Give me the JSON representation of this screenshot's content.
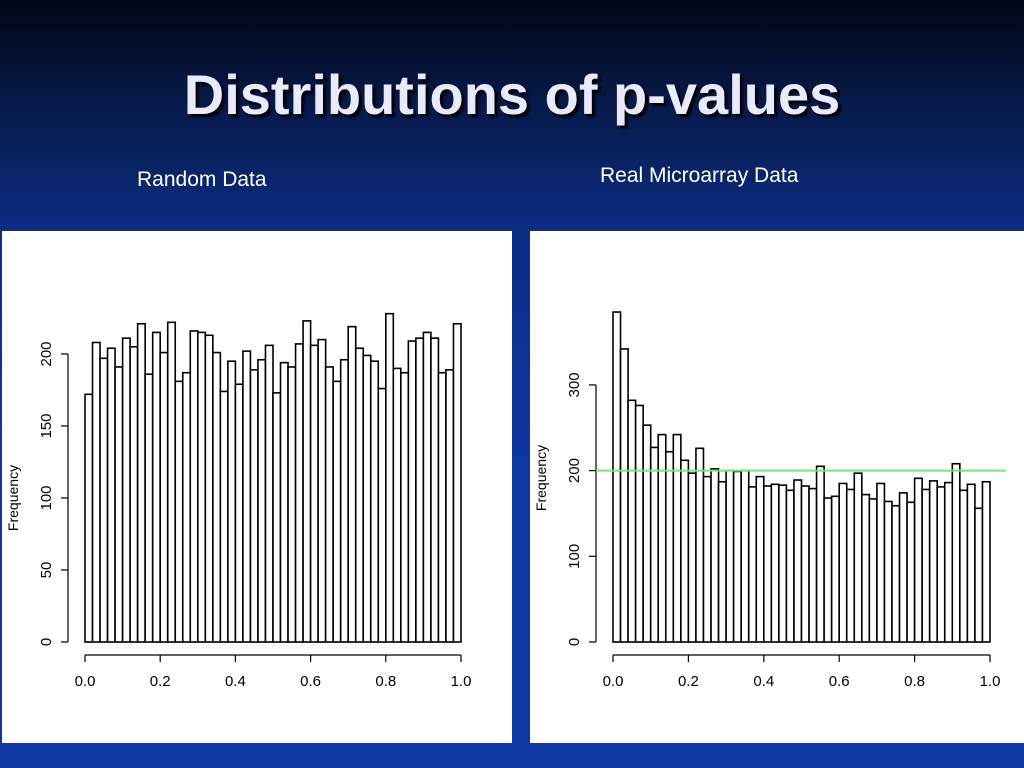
{
  "slide": {
    "title": "Distributions of p-values",
    "left_label": "Random Data",
    "right_label": "Real Microarray Data"
  },
  "colors": {
    "background_top": "#020617",
    "background_bottom": "#0c37a0",
    "title_text": "#eaeaff",
    "bars_stroke": "#000000",
    "reference_line": "#7be07b"
  },
  "chart_data": [
    {
      "type": "bar",
      "name": "random",
      "ylabel": "Frequency",
      "xlim": [
        0,
        1
      ],
      "ylim": [
        0,
        230
      ],
      "bin_width": 0.02,
      "bin_starts": [
        0.0,
        0.02,
        0.04,
        0.06,
        0.08,
        0.1,
        0.12,
        0.14,
        0.16,
        0.18,
        0.2,
        0.22,
        0.24,
        0.26,
        0.28,
        0.3,
        0.32,
        0.34,
        0.36,
        0.38,
        0.4,
        0.42,
        0.44,
        0.46,
        0.48,
        0.5,
        0.52,
        0.54,
        0.56,
        0.58,
        0.6,
        0.62,
        0.64,
        0.66,
        0.68,
        0.7,
        0.72,
        0.74,
        0.76,
        0.78,
        0.8,
        0.82,
        0.84,
        0.86,
        0.88,
        0.9,
        0.92,
        0.94,
        0.96,
        0.98
      ],
      "values": [
        172,
        208,
        197,
        204,
        191,
        211,
        205,
        221,
        186,
        215,
        201,
        222,
        181,
        187,
        216,
        215,
        213,
        201,
        174,
        195,
        179,
        202,
        189,
        196,
        206,
        173,
        194,
        191,
        207,
        223,
        206,
        210,
        191,
        181,
        196,
        219,
        204,
        199,
        195,
        176,
        228,
        190,
        187,
        209,
        211,
        215,
        211,
        187,
        189,
        221
      ],
      "x_ticks": [
        "0.0",
        "0.2",
        "0.4",
        "0.6",
        "0.8",
        "1.0"
      ],
      "y_ticks": [
        "0",
        "50",
        "100",
        "150",
        "200"
      ]
    },
    {
      "type": "bar",
      "name": "real",
      "ylabel": "Frequency",
      "xlim": [
        0,
        1
      ],
      "ylim": [
        0,
        380
      ],
      "bin_width": 0.02,
      "bin_starts": [
        0.0,
        0.02,
        0.04,
        0.06,
        0.08,
        0.1,
        0.12,
        0.14,
        0.16,
        0.18,
        0.2,
        0.22,
        0.24,
        0.26,
        0.28,
        0.3,
        0.32,
        0.34,
        0.36,
        0.38,
        0.4,
        0.42,
        0.44,
        0.46,
        0.48,
        0.5,
        0.52,
        0.54,
        0.56,
        0.58,
        0.6,
        0.62,
        0.64,
        0.66,
        0.68,
        0.7,
        0.72,
        0.74,
        0.76,
        0.78,
        0.8,
        0.82,
        0.84,
        0.86,
        0.88,
        0.9,
        0.92,
        0.94,
        0.96,
        0.98
      ],
      "values": [
        385,
        342,
        282,
        276,
        253,
        227,
        242,
        222,
        242,
        212,
        197,
        226,
        193,
        202,
        187,
        200,
        199,
        200,
        181,
        193,
        182,
        184,
        183,
        177,
        189,
        182,
        179,
        205,
        168,
        170,
        185,
        178,
        197,
        172,
        167,
        185,
        164,
        159,
        174,
        163,
        191,
        178,
        188,
        181,
        186,
        208,
        177,
        184,
        156,
        187
      ],
      "reference_line_y": 200,
      "x_ticks": [
        "0.0",
        "0.2",
        "0.4",
        "0.6",
        "0.8",
        "1.0"
      ],
      "y_ticks": [
        "0",
        "100",
        "200",
        "300"
      ]
    }
  ]
}
